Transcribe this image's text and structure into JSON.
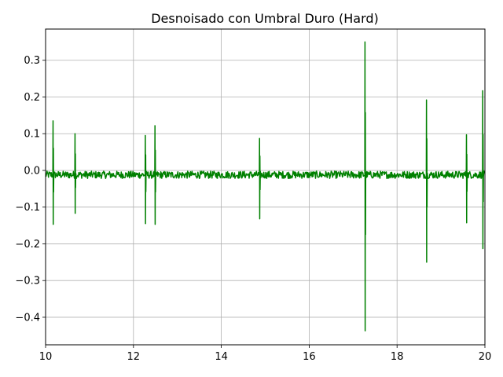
{
  "chart_data": {
    "type": "line",
    "title": "Desnoisado con Umbral Duro (Hard)",
    "xlabel": "",
    "ylabel": "",
    "xlim": [
      10,
      20
    ],
    "ylim": [
      -0.475,
      0.385
    ],
    "x_ticks": [
      10,
      12,
      14,
      16,
      18,
      20
    ],
    "y_ticks": [
      0.3,
      0.2,
      0.1,
      0.0,
      -0.1,
      -0.2,
      -0.3,
      -0.4
    ],
    "x_tick_labels": [
      "10",
      "12",
      "14",
      "16",
      "18",
      "20"
    ],
    "y_tick_labels": [
      "0.3",
      "0.2",
      "0.1",
      "0.0",
      "−0.1",
      "−0.2",
      "−0.3",
      "−0.4"
    ],
    "grid": true,
    "series": [
      {
        "color": "#008000",
        "baseline": -0.012,
        "noise_amplitude": 0.01,
        "spikes": [
          {
            "x": 10.17,
            "max": 0.135,
            "min": -0.147
          },
          {
            "x": 10.67,
            "max": 0.1,
            "min": -0.117
          },
          {
            "x": 12.27,
            "max": 0.095,
            "min": -0.145
          },
          {
            "x": 12.49,
            "max": 0.122,
            "min": -0.147
          },
          {
            "x": 14.87,
            "max": 0.087,
            "min": -0.132
          },
          {
            "x": 17.27,
            "max": 0.35,
            "min": -0.437
          },
          {
            "x": 18.67,
            "max": 0.192,
            "min": -0.25
          },
          {
            "x": 19.58,
            "max": 0.097,
            "min": -0.143
          },
          {
            "x": 19.95,
            "max": 0.217,
            "min": -0.213
          }
        ]
      }
    ]
  }
}
